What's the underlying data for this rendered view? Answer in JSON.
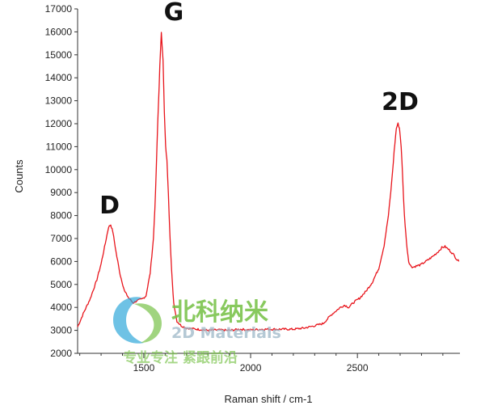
{
  "chart_data": {
    "type": "line",
    "title": "",
    "xlabel": "Raman shift / cm-1",
    "ylabel": "Counts",
    "xlim": [
      1190,
      2980
    ],
    "ylim": [
      2000,
      17000
    ],
    "xticks": [
      1500,
      2000,
      2500
    ],
    "yticks": [
      2000,
      3000,
      4000,
      5000,
      6000,
      7000,
      8000,
      9000,
      10000,
      11000,
      12000,
      13000,
      14000,
      15000,
      16000,
      17000
    ],
    "grid": false,
    "legend": "none",
    "series": [
      {
        "color": "#e8141b",
        "x": [
          1190,
          1220,
          1250,
          1280,
          1300,
          1320,
          1335,
          1345,
          1355,
          1370,
          1390,
          1410,
          1430,
          1450,
          1470,
          1490,
          1510,
          1530,
          1545,
          1555,
          1565,
          1575,
          1582,
          1590,
          1596,
          1602,
          1608,
          1615,
          1622,
          1630,
          1640,
          1655,
          1675,
          1700,
          1750,
          1800,
          1850,
          1900,
          1950,
          2000,
          2050,
          2100,
          2150,
          2200,
          2250,
          2300,
          2340,
          2380,
          2420,
          2440,
          2460,
          2480,
          2510,
          2540,
          2570,
          2600,
          2625,
          2645,
          2660,
          2672,
          2682,
          2690,
          2697,
          2705,
          2712,
          2720,
          2730,
          2740,
          2750,
          2760,
          2775,
          2795,
          2820,
          2850,
          2875,
          2895,
          2910,
          2930,
          2950,
          2965,
          2975
        ],
        "y": [
          3150,
          3800,
          4400,
          5200,
          5900,
          6800,
          7500,
          7600,
          7300,
          6400,
          5400,
          4700,
          4400,
          4200,
          4300,
          4350,
          4500,
          5500,
          7000,
          9000,
          12000,
          14500,
          16000,
          14800,
          12500,
          11000,
          10400,
          9000,
          7200,
          5600,
          4200,
          3400,
          3200,
          3100,
          3050,
          3000,
          3020,
          3000,
          3050,
          3020,
          3050,
          3050,
          3050,
          3050,
          3100,
          3200,
          3300,
          3700,
          4000,
          4100,
          4000,
          4200,
          4400,
          4700,
          5100,
          5700,
          6700,
          8000,
          9400,
          10800,
          11800,
          12000,
          11800,
          11000,
          9600,
          8000,
          6800,
          6000,
          5800,
          5750,
          5800,
          5850,
          6000,
          6200,
          6400,
          6600,
          6650,
          6500,
          6300,
          6100,
          6000
        ]
      }
    ],
    "annotations": [
      {
        "text": "D",
        "x": 1340,
        "y": 8100
      },
      {
        "text": "G",
        "x": 1640,
        "y": 16500
      },
      {
        "text": "2D",
        "x": 2700,
        "y": 12600
      }
    ]
  },
  "watermark": {
    "brand_cn": "北科纳米",
    "brand_en": "2D Materials",
    "slogan_cn": "专业专注  紧跟前沿",
    "logo_colors": [
      "#2aa6d8",
      "#74c043"
    ]
  }
}
